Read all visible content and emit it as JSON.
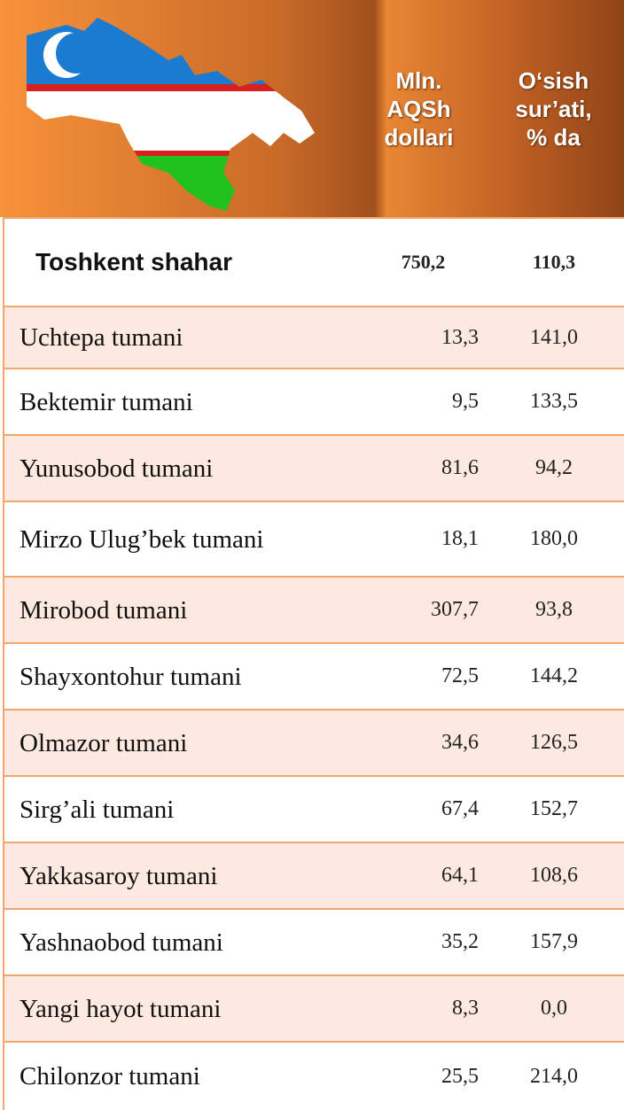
{
  "table": {
    "header": [
      {
        "lines": [
          "Mln.",
          "AQSh",
          "dollari"
        ]
      },
      {
        "lines": [
          "O‘sish",
          "sur’ati,",
          "% da"
        ]
      }
    ],
    "rows": [
      [
        "Toshkent shahar",
        "750,2",
        "110,3"
      ],
      [
        "Uchtepa tumani",
        "13,3",
        "141,0"
      ],
      [
        "Bektemir tumani",
        "9,5",
        "133,5"
      ],
      [
        "Yunusobod tumani",
        "81,6",
        "94,2"
      ],
      [
        "Mirzo Ulug’bek tumani",
        "18,1",
        "180,0"
      ],
      [
        "Mirobod tumani",
        "307,7",
        "93,8"
      ],
      [
        "Shayxontohur tumani",
        "72,5",
        "144,2"
      ],
      [
        "Olmazor tumani",
        "34,6",
        "126,5"
      ],
      [
        "Sirg’ali tumani",
        "67,4",
        "152,7"
      ],
      [
        "Yakkasaroy tumani",
        "64,1",
        "108,6"
      ],
      [
        "Yashnaobod tumani",
        "35,2",
        "157,9"
      ],
      [
        "Yangi hayot tumani",
        "8,3",
        "0,0"
      ],
      [
        "Chilonzor tumani",
        "25,5",
        "214,0"
      ]
    ]
  }
}
